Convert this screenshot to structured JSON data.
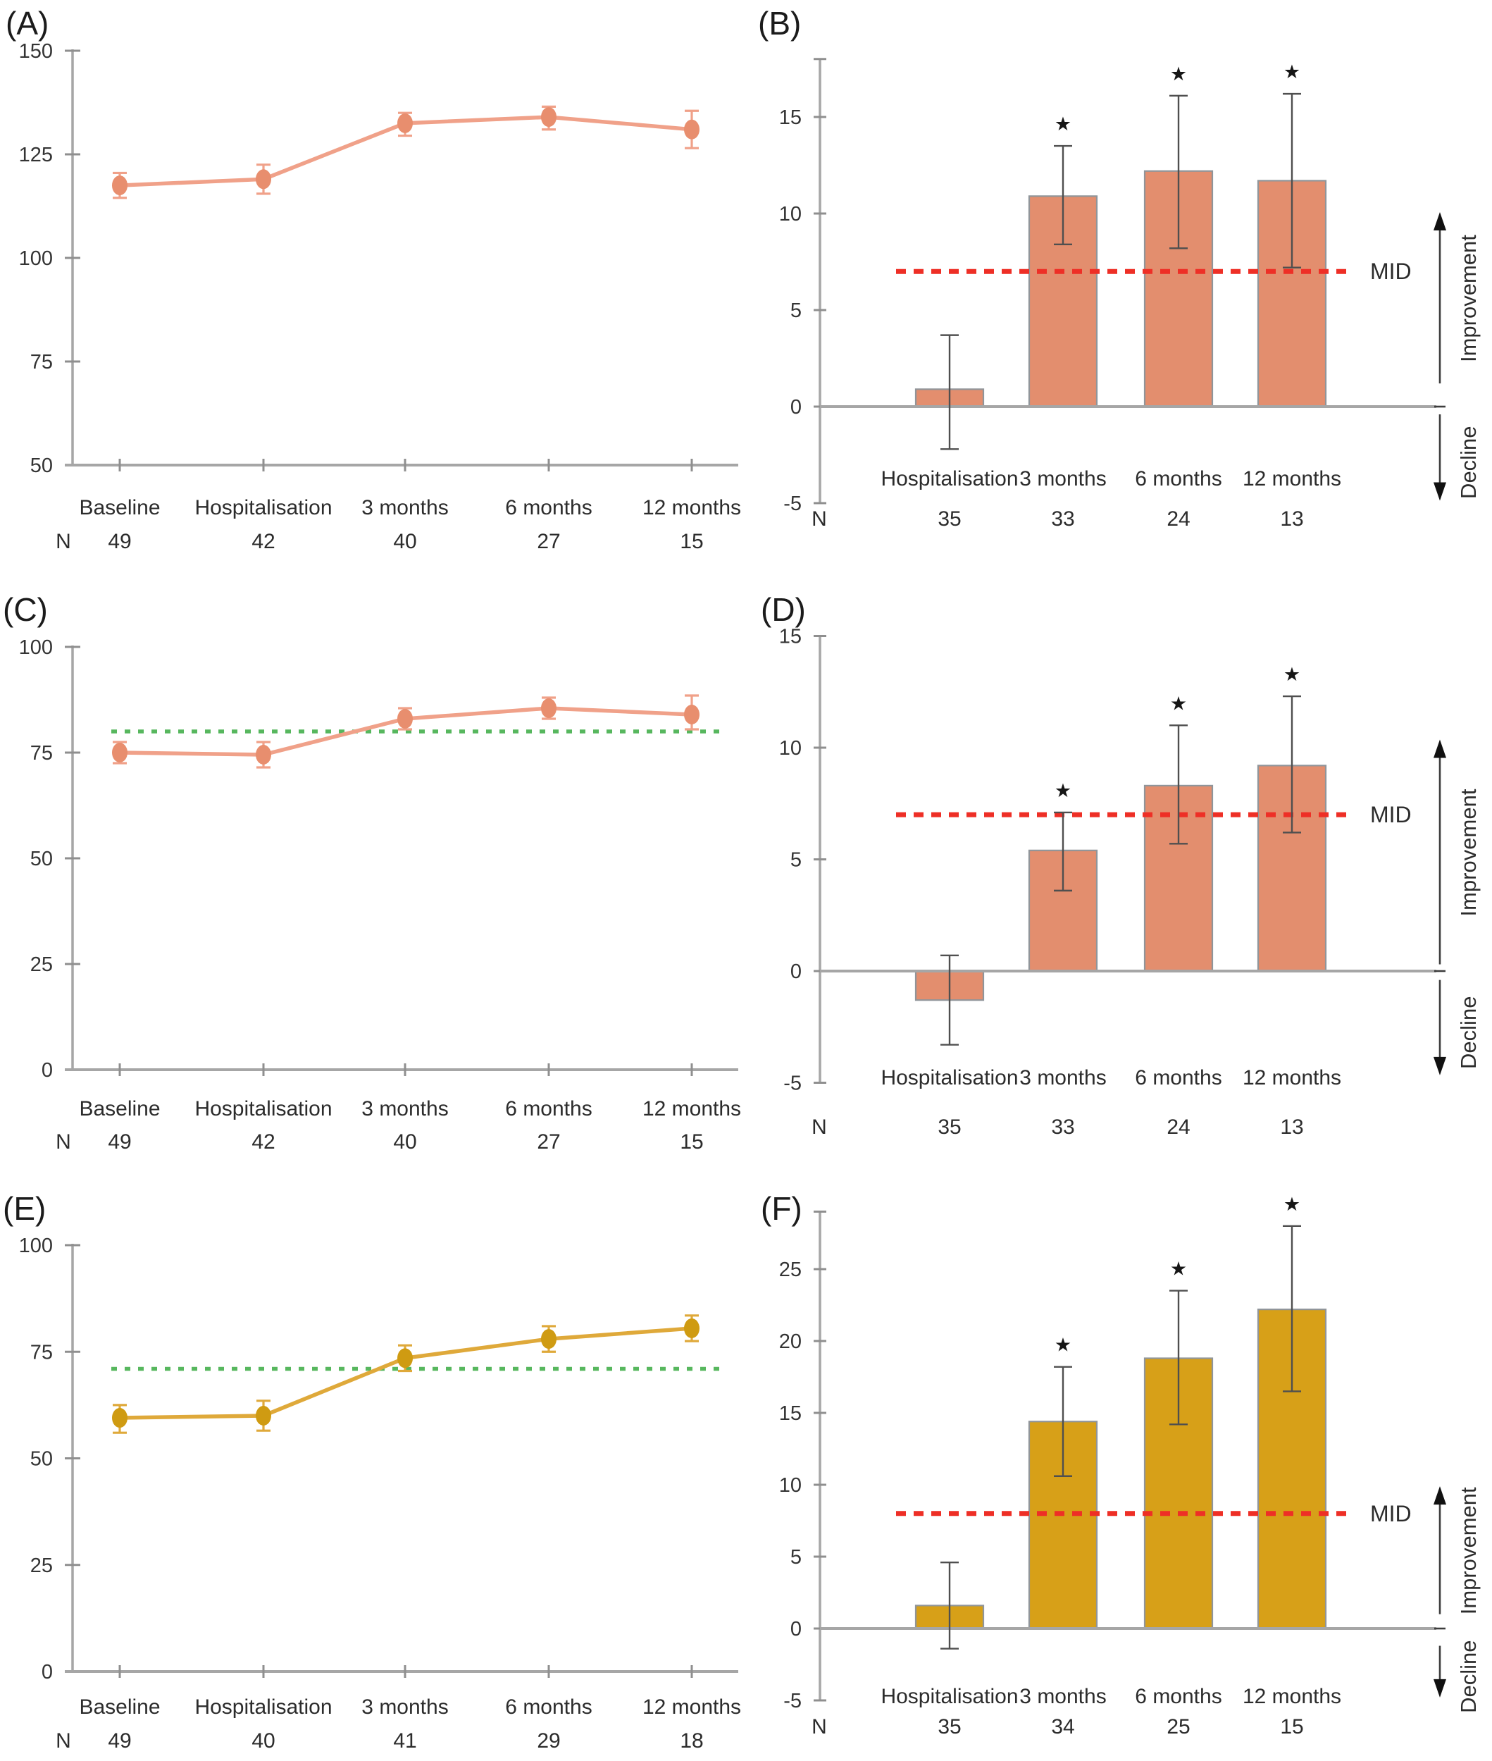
{
  "figure": {
    "panel_labels": [
      "(A)",
      "(B)",
      "(C)",
      "(D)",
      "(E)",
      "(F)"
    ]
  },
  "colors": {
    "salmon_line": "#f0a189",
    "salmon_marker": "#e88e6e",
    "salmon_bar": "#e38e6e",
    "gold_line": "#dfa93a",
    "gold_marker": "#cf9b12",
    "gold_bar": "#d7a018",
    "green_reference": "#57b75e",
    "red_mid": "#ee2f26",
    "axis_gray": "#a6a6a6",
    "error_bar_gray": "#4f4f4f",
    "text_dark": "#2e2e2e"
  },
  "chart_data": [
    {
      "id": "A",
      "panel_label": "(A)",
      "type": "line",
      "categories": [
        "Baseline",
        "Hospitalisation",
        "3 months",
        "6 months",
        "12 months"
      ],
      "values": [
        117.5,
        119,
        132.5,
        134,
        131
      ],
      "err_low": [
        114.5,
        115.5,
        129.5,
        131,
        126.5
      ],
      "err_high": [
        120.5,
        122.5,
        135,
        136.5,
        135.5
      ],
      "n_label": "N",
      "n_values": [
        49,
        42,
        40,
        27,
        15
      ],
      "yticks": [
        150,
        125,
        100,
        75,
        50
      ],
      "ylim": [
        50,
        150
      ],
      "reference_value": null,
      "series_color": "#f0a189",
      "marker_color": "#e88e6e",
      "legend": "none",
      "grid": false
    },
    {
      "id": "B",
      "panel_label": "(B)",
      "type": "bar",
      "categories": [
        "Hospitalisation",
        "3 months",
        "6 months",
        "12 months"
      ],
      "values": [
        0.9,
        10.9,
        12.2,
        11.7
      ],
      "err_low": [
        -2.2,
        8.4,
        8.2,
        7.2
      ],
      "err_high": [
        3.7,
        13.5,
        16.1,
        16.2
      ],
      "significant": [
        false,
        true,
        true,
        true
      ],
      "significance_marker": "★",
      "n_label": "N",
      "n_values": [
        35,
        33,
        24,
        13
      ],
      "yticks": [
        15,
        10,
        5,
        0,
        -5
      ],
      "ylim": [
        -5,
        18
      ],
      "mid_value": 7,
      "mid_label": "MID",
      "improvement_label": "Improvement",
      "decline_label": "Decline",
      "bar_color": "#e38e6e",
      "legend": "none",
      "grid": false
    },
    {
      "id": "C",
      "panel_label": "(C)",
      "type": "line",
      "categories": [
        "Baseline",
        "Hospitalisation",
        "3 months",
        "6 months",
        "12 months"
      ],
      "values": [
        75,
        74.5,
        83,
        85.5,
        84
      ],
      "err_low": [
        72.5,
        71.5,
        80.5,
        83,
        80.5
      ],
      "err_high": [
        77.5,
        77.5,
        85.5,
        88,
        88.5
      ],
      "n_label": "N",
      "n_values": [
        49,
        42,
        40,
        27,
        15
      ],
      "yticks": [
        100,
        75,
        50,
        25,
        0
      ],
      "ylim": [
        0,
        100
      ],
      "reference_value": 80,
      "series_color": "#f0a189",
      "marker_color": "#e88e6e",
      "legend": "none",
      "grid": false
    },
    {
      "id": "D",
      "panel_label": "(D)",
      "type": "bar",
      "categories": [
        "Hospitalisation",
        "3 months",
        "6 months",
        "12 months"
      ],
      "values": [
        -1.3,
        5.4,
        8.3,
        9.2
      ],
      "err_low": [
        -3.3,
        3.6,
        5.7,
        6.2
      ],
      "err_high": [
        0.7,
        7.1,
        11.0,
        12.3
      ],
      "significant": [
        false,
        true,
        true,
        true
      ],
      "significance_marker": "★",
      "n_label": "N",
      "n_values": [
        35,
        33,
        24,
        13
      ],
      "yticks": [
        15,
        10,
        5,
        0,
        -5
      ],
      "ylim": [
        -5,
        15
      ],
      "mid_value": 7,
      "mid_label": "MID",
      "improvement_label": "Improvement",
      "decline_label": "Decline",
      "bar_color": "#e38e6e",
      "legend": "none",
      "grid": false
    },
    {
      "id": "E",
      "panel_label": "(E)",
      "type": "line",
      "categories": [
        "Baseline",
        "Hospitalisation",
        "3 months",
        "6 months",
        "12 months"
      ],
      "values": [
        59.5,
        60,
        73.5,
        78,
        80.5
      ],
      "err_low": [
        56,
        56.5,
        70.5,
        75,
        77.5
      ],
      "err_high": [
        62.5,
        63.5,
        76.5,
        81,
        83.5
      ],
      "n_label": "N",
      "n_values": [
        49,
        40,
        41,
        29,
        18
      ],
      "yticks": [
        100,
        75,
        50,
        25,
        0
      ],
      "ylim": [
        0,
        100
      ],
      "reference_value": 71,
      "series_color": "#dfa93a",
      "marker_color": "#cf9b12",
      "legend": "none",
      "grid": false
    },
    {
      "id": "F",
      "panel_label": "(F)",
      "type": "bar",
      "categories": [
        "Hospitalisation",
        "3 months",
        "6 months",
        "12 months"
      ],
      "values": [
        1.6,
        14.4,
        18.8,
        22.2
      ],
      "err_low": [
        -1.4,
        10.6,
        14.2,
        16.5
      ],
      "err_high": [
        4.6,
        18.2,
        23.5,
        28.0
      ],
      "significant": [
        false,
        true,
        true,
        true
      ],
      "significance_marker": "★",
      "n_label": "N",
      "n_values": [
        35,
        34,
        25,
        15
      ],
      "yticks": [
        25,
        20,
        15,
        10,
        5,
        0,
        -5
      ],
      "ylim": [
        -5,
        29
      ],
      "mid_value": 8,
      "mid_label": "MID",
      "improvement_label": "Improvement",
      "decline_label": "Decline",
      "bar_color": "#d7a018",
      "legend": "none",
      "grid": false
    }
  ]
}
